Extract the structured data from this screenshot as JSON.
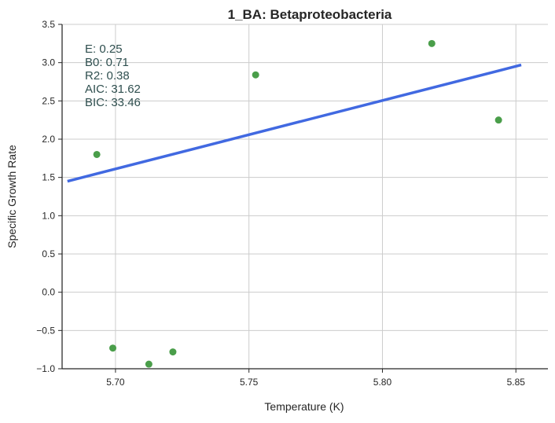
{
  "chart_data": {
    "type": "scatter",
    "title": "1_BA: Betaproteobacteria",
    "xlabel": "Temperature (K)",
    "ylabel": "Specific Growth Rate",
    "xlim": [
      5.68,
      5.862
    ],
    "ylim": [
      -1.0,
      3.5
    ],
    "xticks": [
      5.7,
      5.75,
      5.8,
      5.85
    ],
    "xtick_labels": [
      "5.70",
      "5.75",
      "5.80",
      "5.85"
    ],
    "yticks": [
      -1.0,
      -0.5,
      0.0,
      0.5,
      1.0,
      1.5,
      2.0,
      2.5,
      3.0,
      3.5
    ],
    "ytick_labels": [
      "−1.0",
      "−0.5",
      "0.0",
      "0.5",
      "1.0",
      "1.5",
      "2.0",
      "2.5",
      "3.0",
      "3.5"
    ],
    "grid": true,
    "points": {
      "color": "#4a9e4a",
      "x": [
        5.693,
        5.699,
        5.7125,
        5.7215,
        5.7525,
        5.8185,
        5.8435
      ],
      "y": [
        1.8,
        -0.73,
        -0.94,
        -0.78,
        2.84,
        3.25,
        2.25
      ]
    },
    "fit_line": {
      "color": "#4169e1",
      "x": [
        5.682,
        5.852
      ],
      "y": [
        1.45,
        2.97
      ]
    },
    "annotations": [
      "E:  0.25",
      "B0:  0.71",
      "R2:  0.38",
      "AIC: 31.62",
      "BIC: 33.46"
    ]
  }
}
